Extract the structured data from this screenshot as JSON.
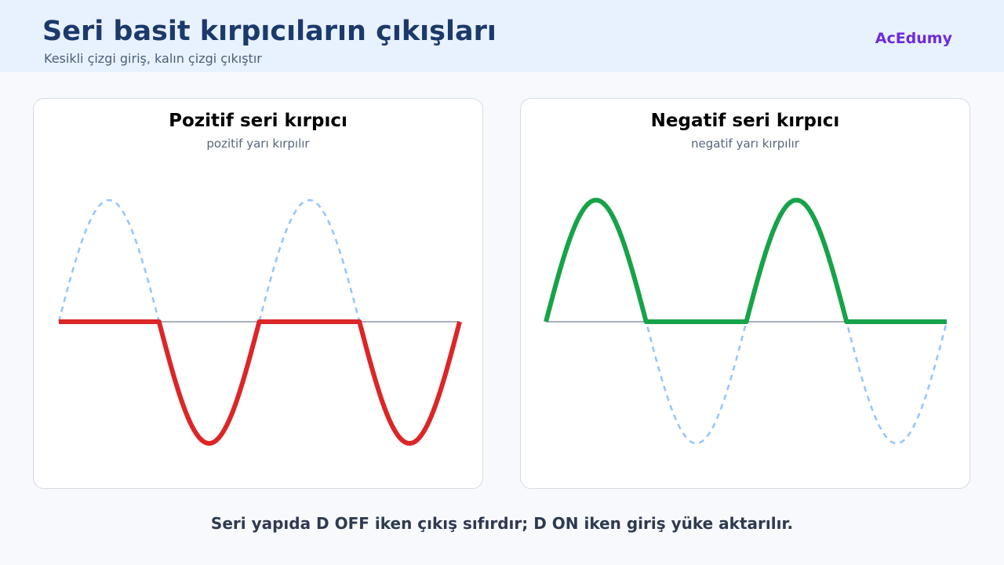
{
  "header": {
    "title": "Seri basit kırpıcıların çıkışları",
    "subtitle": "Kesikli çizgi giriş, kalın çizgi çıkıştır",
    "brand": "AcEdumy"
  },
  "panels": [
    {
      "title": "Pozitif seri kırpıcı",
      "subtitle": "pozitif yarı kırpılır",
      "clipped_half": "positive",
      "output_color": "#dc2626"
    },
    {
      "title": "Negatif seri kırpıcı",
      "subtitle": "negatif yarı kırpılır",
      "clipped_half": "negative",
      "output_color": "#16a34a"
    }
  ],
  "colors": {
    "input_wave": "#93c5fd",
    "zero_axis": "#8c96a8"
  },
  "footer": {
    "note": "Seri yapıda D OFF iken çıkış sıfırdır; D ON iken giriş yüke aktarılır."
  }
}
